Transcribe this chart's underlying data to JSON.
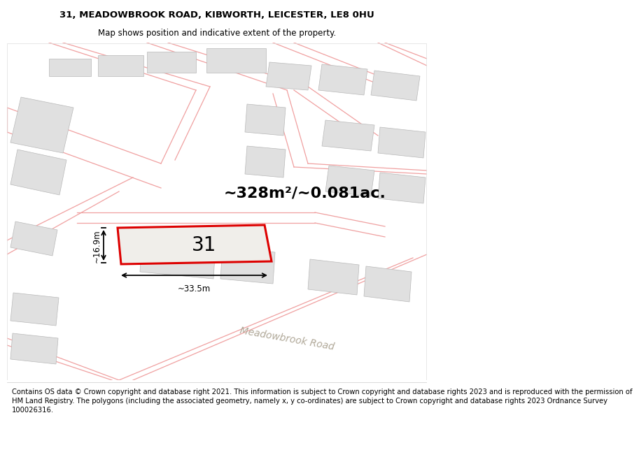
{
  "title_line1": "31, MEADOWBROOK ROAD, KIBWORTH, LEICESTER, LE8 0HU",
  "title_line2": "Map shows position and indicative extent of the property.",
  "footer_text": "Contains OS data © Crown copyright and database right 2021. This information is subject to Crown copyright and database rights 2023 and is reproduced with the permission of\nHM Land Registry. The polygons (including the associated geometry, namely x, y co-ordinates) are subject to Crown copyright and database rights 2023 Ordnance Survey\n100026316.",
  "area_text": "~328m²/~0.081ac.",
  "property_number": "31",
  "dim_width": "~33.5m",
  "dim_height": "~16.9m",
  "road_label": "Meadowbrook Road",
  "map_bg": "#f8f7f5",
  "property_fill": "#f0eeea",
  "property_edge": "#dd0000",
  "neighbor_fill": "#e0e0e0",
  "neighbor_edge": "#f0a0a0",
  "plot_edge": "#f0a0a0",
  "title_fontsize": 9.5,
  "subtitle_fontsize": 8.5,
  "footer_fontsize": 7.2,
  "area_fontsize": 16,
  "number_fontsize": 20
}
